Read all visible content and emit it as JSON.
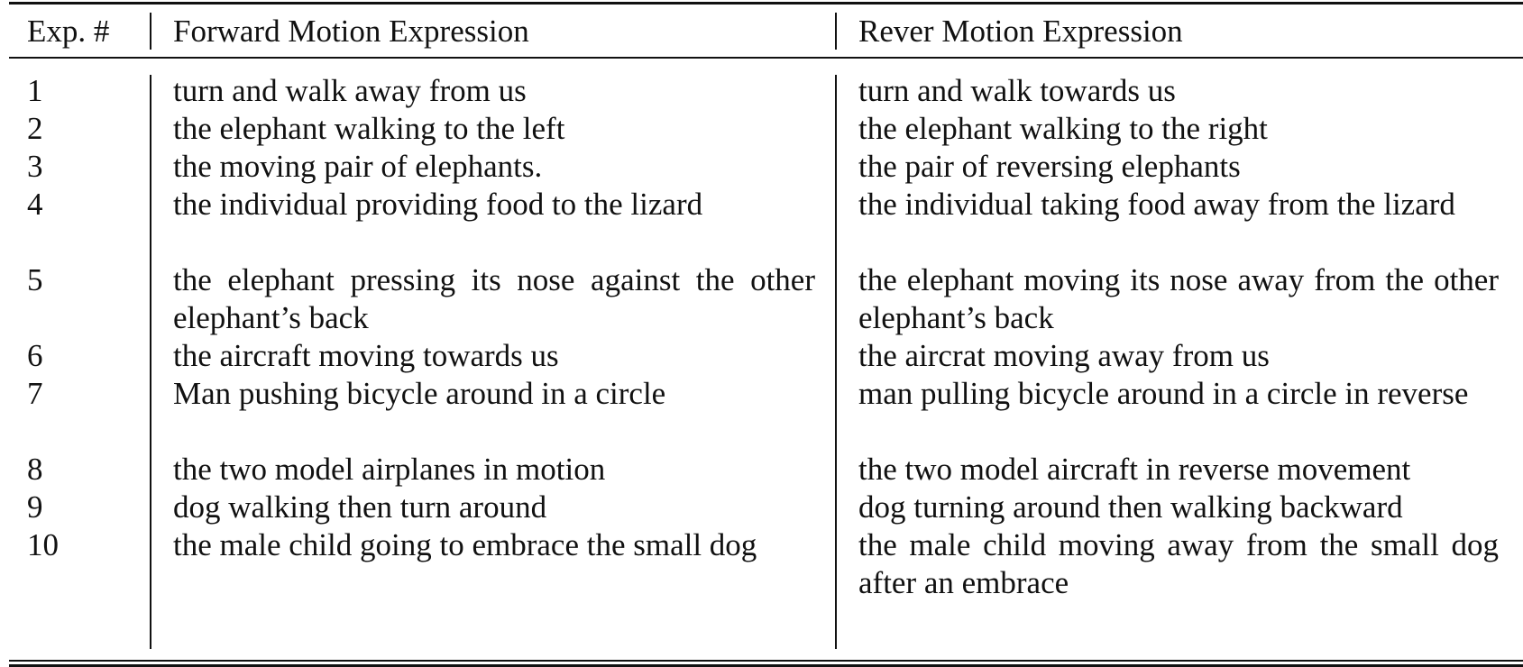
{
  "table": {
    "headers": {
      "exp": "Exp. #",
      "forward": "Forward Motion Expression",
      "reverse": "Rever Motion Expression"
    },
    "rows": [
      {
        "exp": "1",
        "forward": "turn and walk away from us",
        "reverse": "turn and walk towards us",
        "lines": 1
      },
      {
        "exp": "2",
        "forward": "the elephant walking to the left",
        "reverse": "the elephant walking to the right",
        "lines": 1
      },
      {
        "exp": "3",
        "forward": "the moving pair of elephants.",
        "reverse": "the pair of reversing elephants",
        "lines": 1
      },
      {
        "exp": "4",
        "forward": "the individual providing food to the lizard",
        "reverse": "the individual taking food away from the lizard",
        "lines": 2
      },
      {
        "exp": "5",
        "forward": "the elephant pressing its nose against the other elephant’s back",
        "reverse": "the elephant moving its nose away from the other elephant’s back",
        "lines": 2
      },
      {
        "exp": "6",
        "forward": "the aircraft moving towards us",
        "reverse": "the aircrat moving away from us",
        "lines": 1
      },
      {
        "exp": "7",
        "forward": "Man pushing bicycle around in a circle",
        "reverse": "man pulling bicycle around in a circle in reverse",
        "lines": 2
      },
      {
        "exp": "8",
        "forward": "the two model airplanes in motion",
        "reverse": "the two model aircraft in reverse movement",
        "lines": 1
      },
      {
        "exp": "9",
        "forward": "dog walking then turn around",
        "reverse": "dog turning around then walking backward",
        "lines": 1
      },
      {
        "exp": "10",
        "forward": "the male child going to embrace the small dog",
        "reverse": "the male child moving away from the small dog after an embrace",
        "lines": 2
      }
    ]
  }
}
